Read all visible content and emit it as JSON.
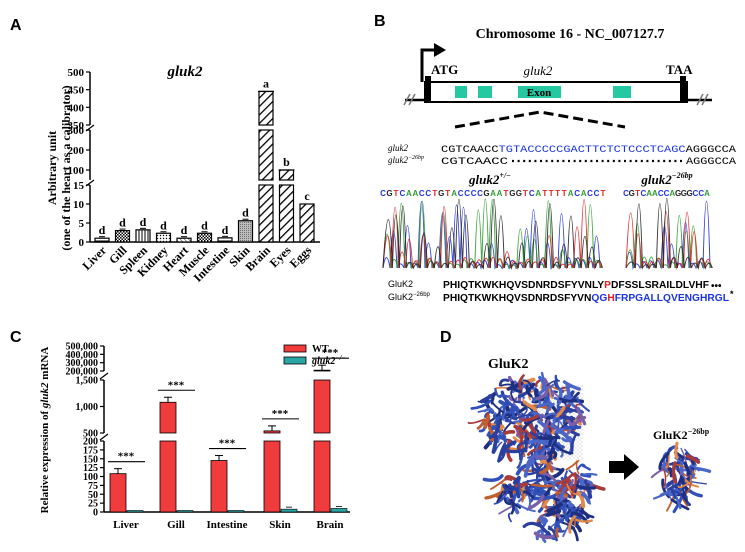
{
  "panels": {
    "A": {
      "letter": "A",
      "title": "gluk2",
      "ylabel_1": "Arbitrary unit",
      "ylabel_2": "(one of the heart as a calibrator)",
      "y_ticks_low": [
        "0",
        "5",
        "10",
        "15"
      ],
      "y_ticks_mid": [
        "100",
        "200",
        "300"
      ],
      "y_ticks_high": [
        "350",
        "400",
        "450",
        "500"
      ]
    },
    "B": {
      "letter": "B",
      "title": "Chromosome 16 - NC_007127.7",
      "atg": "ATG",
      "gene": "gluk2",
      "taa": "TAA",
      "exon": "Exon",
      "seq_wt_label": "gluk2",
      "seq_mut_label": "gluk2",
      "seq_mut_sup": "−26bp",
      "seq_wt_prefix": "CGTCAACC",
      "seq_wt_deleted": "TGTACCCCCGACTTCTCTCCCTCAGC",
      "seq_wt_suffix": "AGGGCCA",
      "seq_mut_prefix": "CGTCAACC",
      "seq_mut_suffix": "AGGGCCA",
      "chrom_left_title": "gluk2",
      "chrom_left_sup": "+/−",
      "chrom_right_title": "gluk2",
      "chrom_right_sup": "−26bp",
      "chrom_left_seq": "CGTCAACCTGTACCCCGAATGGTCATTTTACACCT",
      "chrom_right_seq": "CGTCAACCAGGGCCA",
      "prot_wt_label": "GluK2",
      "prot_mut_label": "GluK2",
      "prot_mut_sup": "−26bp",
      "prot_wt_a": "PHIQTKWKHQVSDNRDSFYVNLY",
      "prot_wt_b": "P",
      "prot_wt_c": "DFSSLSRAILDLVHF",
      "prot_wt_dots": "•••",
      "prot_mut_a": "PHIQTKWKHQVSDNRDSFYVN",
      "prot_mut_b": "QG",
      "prot_mut_c": "H",
      "prot_mut_d": "FRPGALLQVENGHRGL",
      "prot_mut_star": "*"
    },
    "C": {
      "letter": "C",
      "ylabel": "Relative expression of gluk2 mRNA",
      "legend_wt": "WT",
      "legend_ko": "gluk2",
      "legend_ko_sup": "−/−",
      "y_ticks_low": [
        "0",
        "25",
        "50",
        "75",
        "100",
        "125",
        "150",
        "175",
        "200"
      ],
      "y_ticks_mid": [
        "500",
        "1,000",
        "1,500"
      ],
      "y_ticks_high": [
        "200,000",
        "300,000",
        "400,000",
        "500,000"
      ],
      "sig": "***",
      "colors": {
        "wt": "#f03c3c",
        "ko": "#2aa6a6"
      }
    },
    "D": {
      "letter": "D",
      "label_wt": "GluK2",
      "label_mut": "GluK2",
      "label_mut_sup": "−26bp"
    }
  },
  "chart_data": [
    {
      "type": "bar",
      "panel": "A",
      "title": "gluk2",
      "ylabel": "Arbitrary unit (one of the heart as a calibrator)",
      "categories": [
        "Liver",
        "Gill",
        "Spleen",
        "Kidney",
        "Heart",
        "Muscle",
        "Intestine",
        "Skin",
        "Brain",
        "Eyes",
        "Eggs"
      ],
      "values": [
        1.0,
        3.0,
        3.2,
        2.3,
        1.0,
        2.3,
        1.1,
        5.6,
        445,
        100,
        10
      ],
      "letters": [
        "d",
        "d",
        "d",
        "d",
        "d",
        "d",
        "d",
        "d",
        "a",
        "b",
        "c"
      ],
      "ylim": [
        0,
        500
      ],
      "axis_breaks": [
        [
          15,
          50
        ],
        [
          300,
          350
        ]
      ]
    },
    {
      "type": "bar",
      "panel": "C",
      "ylabel": "Relative expression of gluk2 mRNA",
      "categories": [
        "Liver",
        "Gill",
        "Intestine",
        "Skin",
        "Brain"
      ],
      "series": [
        {
          "name": "WT",
          "values": [
            108,
            1080,
            145,
            540,
            210000
          ]
        },
        {
          "name": "gluk2−/−",
          "values": [
            0.5,
            0.5,
            0.5,
            8,
            10
          ]
        }
      ],
      "significance": [
        "***",
        "***",
        "***",
        "***",
        "***"
      ],
      "ylim": [
        0,
        500000
      ],
      "axis_breaks": [
        [
          200,
          250
        ],
        [
          1500,
          200000
        ]
      ]
    }
  ]
}
